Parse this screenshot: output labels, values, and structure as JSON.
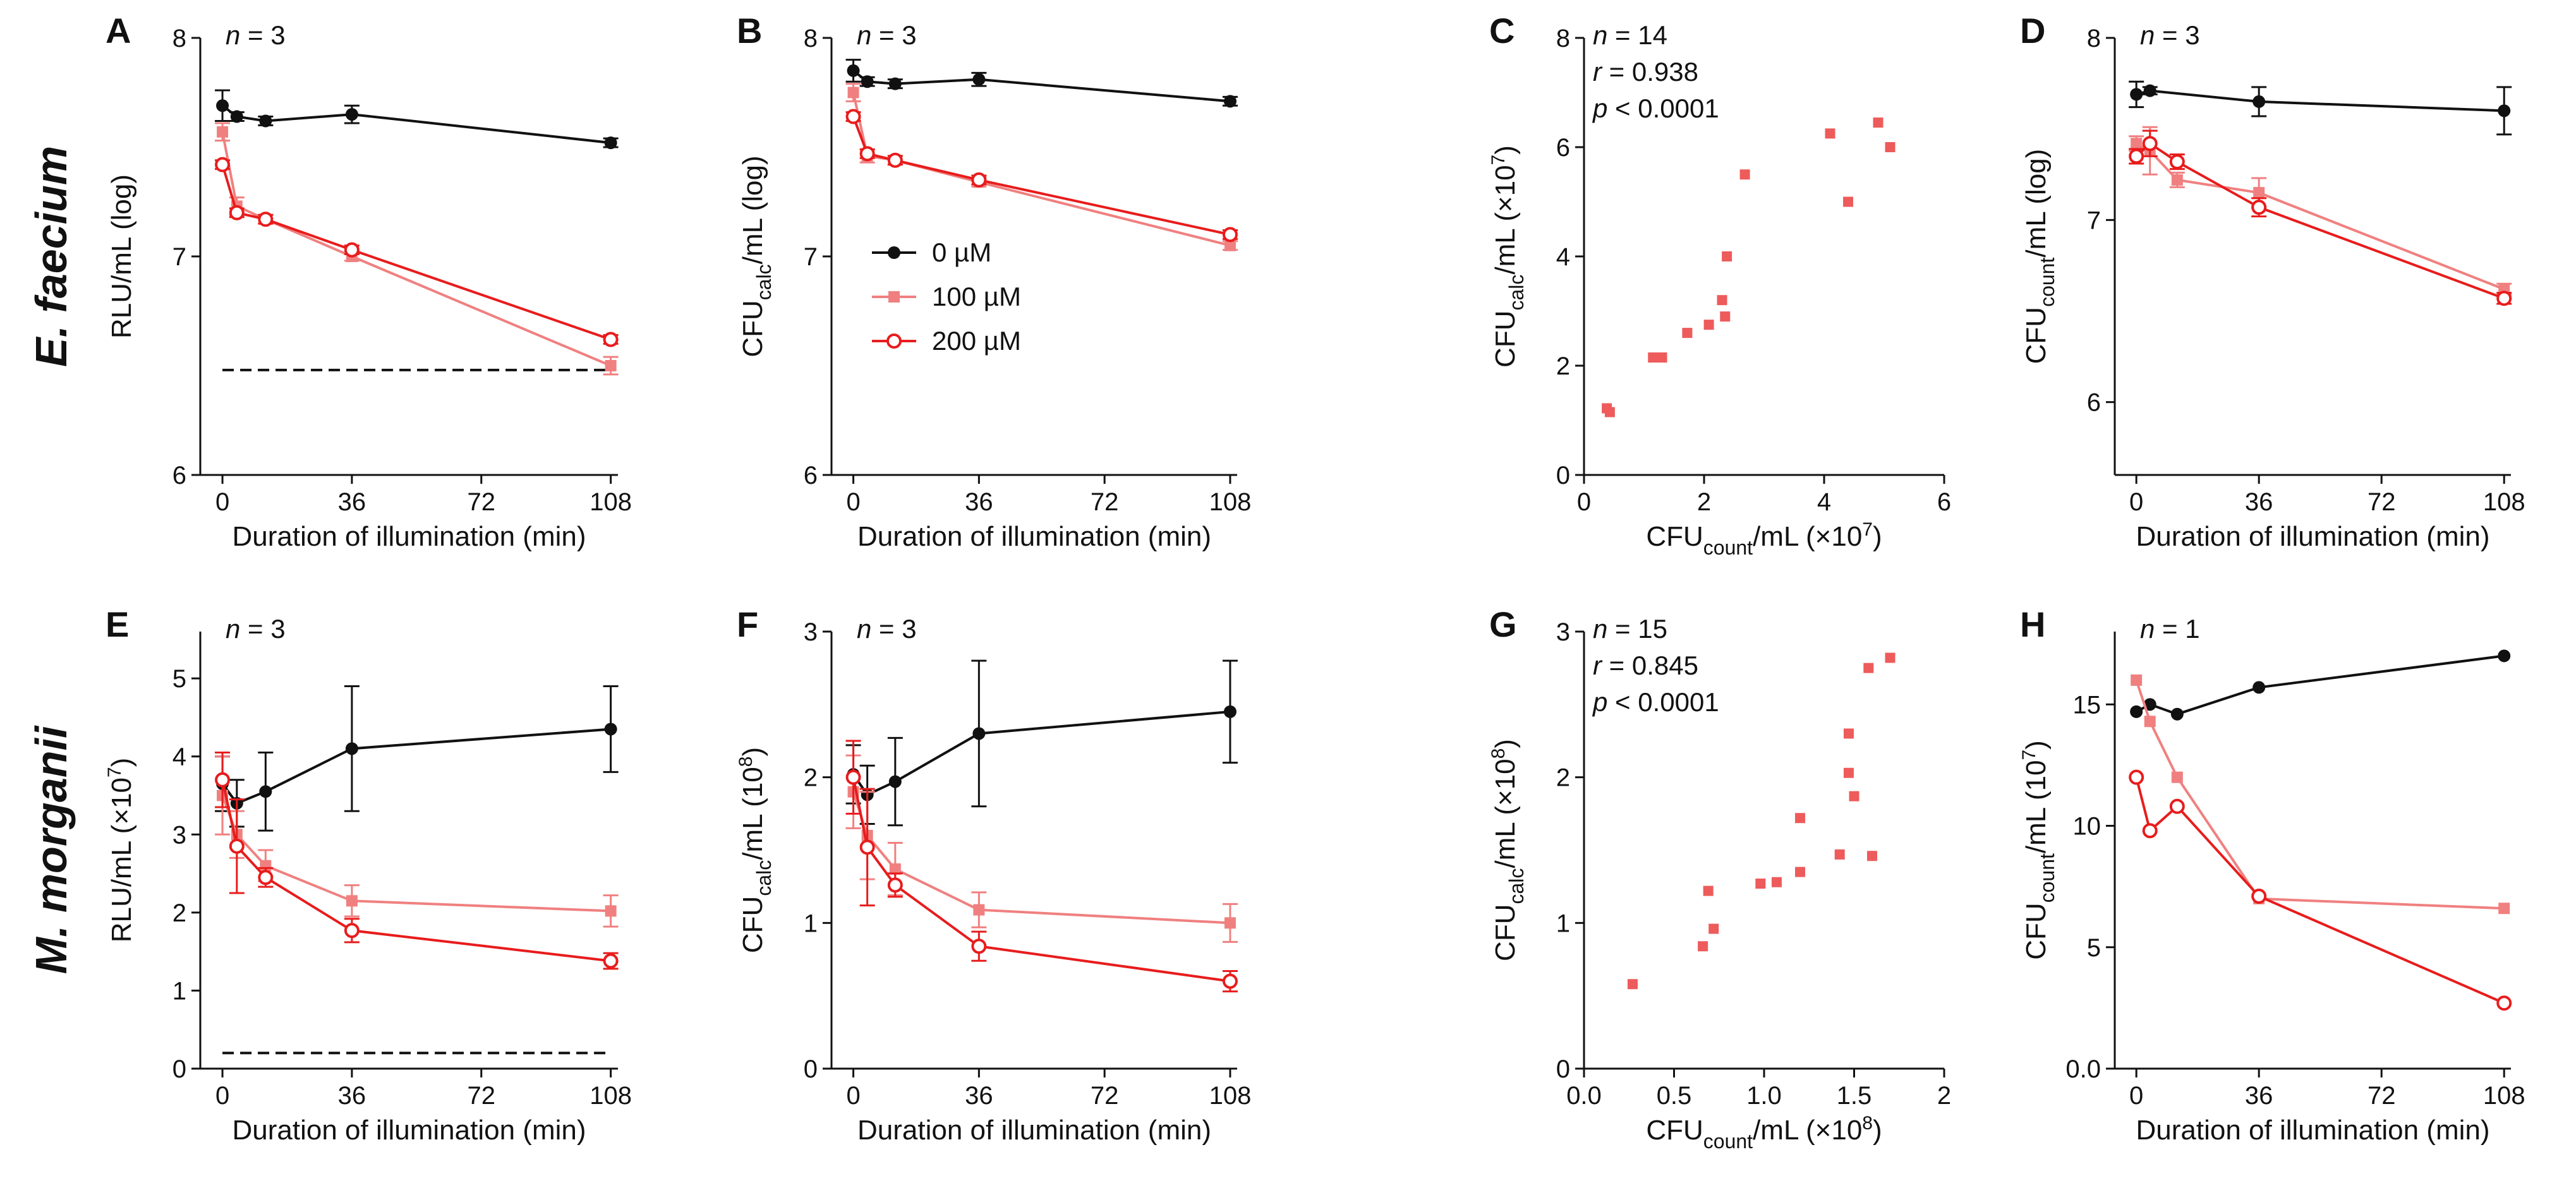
{
  "row_labels": [
    "E. faecium",
    "M. morganii"
  ],
  "legend": [
    {
      "label": "0 µM",
      "color": "#111111",
      "marker": "filled-circle"
    },
    {
      "label": "100 µM",
      "color": "#f08080",
      "marker": "filled-square"
    },
    {
      "label": "200 µM",
      "color": "#e81c1c",
      "marker": "open-circle"
    }
  ],
  "chart_data": [
    {
      "panel": "A",
      "type": "line",
      "annotation": "n = 3",
      "xlabel": "Duration of illumination (min)",
      "ylabel": "RLU/mL (log)",
      "xticks": [
        "0",
        "36",
        "72",
        "108"
      ],
      "yticks": [
        "6",
        "7",
        "8"
      ],
      "xlim": [
        -3,
        110
      ],
      "ylim": [
        6,
        8
      ],
      "dashed_line": {
        "y": 6.48
      },
      "x": [
        0,
        4,
        12,
        36,
        108
      ],
      "series": [
        {
          "name": "0 µM",
          "values": [
            7.69,
            7.64,
            7.62,
            7.65,
            7.52
          ],
          "err": [
            0.07,
            0.02,
            0.02,
            0.04,
            0.02
          ]
        },
        {
          "name": "100 µM",
          "values": [
            7.57,
            7.23,
            7.17,
            7.0,
            6.5
          ],
          "err": [
            0.04,
            0.04,
            0.02,
            0.02,
            0.04
          ]
        },
        {
          "name": "200 µM",
          "values": [
            7.42,
            7.2,
            7.17,
            7.03,
            6.62
          ],
          "err": [
            0.02,
            0.02,
            0.02,
            0.02,
            0.02
          ]
        }
      ]
    },
    {
      "panel": "B",
      "type": "line",
      "annotation": "n = 3",
      "xlabel": "Duration of illumination (min)",
      "ylabel": "CFU",
      "ylabel_sub": "calc",
      "ylabel_tail": "/mL (log)",
      "xticks": [
        "0",
        "36",
        "72",
        "108"
      ],
      "yticks": [
        "6",
        "7",
        "8"
      ],
      "xlim": [
        -3,
        110
      ],
      "ylim": [
        6,
        8
      ],
      "x": [
        0,
        4,
        12,
        36,
        108
      ],
      "series": [
        {
          "name": "0 µM",
          "values": [
            7.85,
            7.8,
            7.79,
            7.81,
            7.71
          ],
          "err": [
            0.05,
            0.02,
            0.02,
            0.03,
            0.02
          ]
        },
        {
          "name": "100 µM",
          "values": [
            7.75,
            7.46,
            7.44,
            7.34,
            7.05
          ],
          "err": [
            0.04,
            0.03,
            0.02,
            0.02,
            0.02
          ]
        },
        {
          "name": "200 µM",
          "values": [
            7.64,
            7.47,
            7.44,
            7.35,
            7.1
          ],
          "err": [
            0.02,
            0.02,
            0.02,
            0.02,
            0.02
          ]
        }
      ]
    },
    {
      "panel": "C",
      "type": "scatter",
      "annotation_lines": [
        "n = 14",
        "r = 0.938",
        "p < 0.0001"
      ],
      "xlabel": "CFU",
      "xlabel_sub": "count",
      "xlabel_tail": "/mL (×10",
      "xlabel_exp": "7",
      "xlabel_close": ")",
      "ylabel": "CFU",
      "ylabel_sub": "calc",
      "ylabel_tail": "/mL (×10",
      "ylabel_exp": "7",
      "ylabel_close": ")",
      "xticks": [
        "0",
        "2",
        "4",
        "6"
      ],
      "yticks": [
        "0",
        "2",
        "4",
        "6",
        "8"
      ],
      "xlim": [
        0,
        6
      ],
      "ylim": [
        0,
        8
      ],
      "points": [
        [
          0.38,
          1.22
        ],
        [
          0.43,
          1.15
        ],
        [
          1.15,
          2.15
        ],
        [
          1.3,
          2.15
        ],
        [
          1.72,
          2.6
        ],
        [
          2.08,
          2.75
        ],
        [
          2.3,
          3.2
        ],
        [
          2.35,
          2.9
        ],
        [
          2.38,
          4.0
        ],
        [
          2.68,
          5.5
        ],
        [
          4.1,
          6.25
        ],
        [
          4.4,
          5.0
        ],
        [
          4.9,
          6.45
        ],
        [
          5.1,
          6.0
        ]
      ]
    },
    {
      "panel": "D",
      "type": "line",
      "annotation": "n = 3",
      "xlabel": "Duration of illumination (min)",
      "ylabel": "CFU",
      "ylabel_sub": "count",
      "ylabel_tail": "/mL (log)",
      "xticks": [
        "0",
        "36",
        "72",
        "108"
      ],
      "yticks": [
        "6",
        "7",
        "8"
      ],
      "xlim": [
        -3,
        110
      ],
      "ylim": [
        5.6,
        8
      ],
      "x": [
        0,
        4,
        12,
        36,
        108
      ],
      "series": [
        {
          "name": "0 µM",
          "values": [
            7.69,
            7.71,
            7.65,
            7.6
          ],
          "x": [
            0,
            4,
            36,
            108
          ],
          "err": [
            0.07,
            0.02,
            0.08,
            0.13
          ]
        },
        {
          "name": "100 µM",
          "values": [
            7.42,
            7.38,
            7.22,
            7.15,
            6.62
          ],
          "err": [
            0.04,
            0.13,
            0.04,
            0.08,
            0.03
          ]
        },
        {
          "name": "200 µM",
          "values": [
            7.35,
            7.42,
            7.32,
            7.07,
            6.57
          ],
          "err": [
            0.04,
            0.07,
            0.04,
            0.05,
            0.03
          ]
        }
      ]
    },
    {
      "panel": "E",
      "type": "line",
      "annotation": "n = 3",
      "xlabel": "Duration of illumination (min)",
      "ylabel": "RLU/mL (×10",
      "ylabel_exp": "7",
      "ylabel_close": ")",
      "xticks": [
        "0",
        "36",
        "72",
        "108"
      ],
      "yticks": [
        "0",
        "1",
        "2",
        "3",
        "4",
        "5"
      ],
      "xlim": [
        -3,
        110
      ],
      "ylim": [
        0,
        5.6
      ],
      "dashed_line": {
        "y": 0.2
      },
      "x": [
        0,
        4,
        12,
        36,
        108
      ],
      "series": [
        {
          "name": "0 µM",
          "values": [
            3.65,
            3.4,
            3.55,
            4.1,
            4.35
          ],
          "err": [
            0.35,
            0.3,
            0.5,
            0.8,
            0.55
          ]
        },
        {
          "name": "100 µM",
          "values": [
            3.5,
            3.0,
            2.6,
            2.15,
            2.02
          ],
          "err": [
            0.5,
            0.3,
            0.2,
            0.2,
            0.2
          ]
        },
        {
          "name": "200 µM",
          "values": [
            3.7,
            2.85,
            2.45,
            1.77,
            1.38
          ],
          "err": [
            0.35,
            0.6,
            0.12,
            0.15,
            0.1
          ]
        }
      ]
    },
    {
      "panel": "F",
      "type": "line",
      "annotation": "n = 3",
      "xlabel": "Duration of illumination (min)",
      "ylabel": "CFU",
      "ylabel_sub": "calc",
      "ylabel_tail": "/mL (10",
      "ylabel_exp": "8",
      "ylabel_close": ")",
      "xticks": [
        "0",
        "36",
        "72",
        "108"
      ],
      "yticks": [
        "0",
        "1",
        "2",
        "3"
      ],
      "xlim": [
        -3,
        110
      ],
      "ylim": [
        0,
        3
      ],
      "x": [
        0,
        4,
        12,
        36,
        108
      ],
      "series": [
        {
          "name": "0 µM",
          "values": [
            2.02,
            1.88,
            1.97,
            2.3,
            2.45
          ],
          "err": [
            0.2,
            0.2,
            0.3,
            0.5,
            0.35
          ]
        },
        {
          "name": "100 µM",
          "values": [
            1.9,
            1.6,
            1.37,
            1.09,
            1.0
          ],
          "err": [
            0.25,
            0.3,
            0.18,
            0.12,
            0.13
          ]
        },
        {
          "name": "200 µM",
          "values": [
            2.0,
            1.52,
            1.26,
            0.84,
            0.6
          ],
          "err": [
            0.25,
            0.4,
            0.08,
            0.1,
            0.07
          ]
        }
      ]
    },
    {
      "panel": "G",
      "type": "scatter",
      "annotation_lines": [
        "n = 15",
        "r = 0.845",
        "p < 0.0001"
      ],
      "xlabel": "CFU",
      "xlabel_sub": "count",
      "xlabel_tail": "/mL (×10",
      "xlabel_exp": "8",
      "xlabel_close": ")",
      "ylabel": "CFU",
      "ylabel_sub": "calc",
      "ylabel_tail": "/mL (×10",
      "ylabel_exp": "8",
      "ylabel_close": ")",
      "xticks": [
        "0.0",
        "0.5",
        "1.0",
        "1.5",
        "2"
      ],
      "yticks": [
        "0",
        "1",
        "2",
        "3"
      ],
      "xlim": [
        0,
        2
      ],
      "ylim": [
        0,
        3
      ],
      "points": [
        [
          0.27,
          0.58
        ],
        [
          0.66,
          0.84
        ],
        [
          0.69,
          1.22
        ],
        [
          0.72,
          0.96
        ],
        [
          0.98,
          1.27
        ],
        [
          1.07,
          1.28
        ],
        [
          1.2,
          1.35
        ],
        [
          1.2,
          1.72
        ],
        [
          1.42,
          1.47
        ],
        [
          1.47,
          2.03
        ],
        [
          1.47,
          2.3
        ],
        [
          1.5,
          1.87
        ],
        [
          1.58,
          2.75
        ],
        [
          1.6,
          1.46
        ],
        [
          1.7,
          2.82
        ]
      ]
    },
    {
      "panel": "H",
      "type": "line",
      "annotation": "n = 1",
      "xlabel": "Duration of illumination (min)",
      "ylabel": "CFU",
      "ylabel_sub": "count",
      "ylabel_tail": "/mL (10",
      "ylabel_exp": "7",
      "ylabel_close": ")",
      "xticks": [
        "0",
        "36",
        "72",
        "108"
      ],
      "yticks": [
        "0.0",
        "5",
        "10",
        "15"
      ],
      "xlim": [
        -3,
        110
      ],
      "ylim": [
        0,
        18
      ],
      "x": [
        0,
        4,
        12,
        36,
        108
      ],
      "series": [
        {
          "name": "0 µM",
          "values": [
            14.7,
            15.0,
            14.6,
            15.7,
            17.0
          ]
        },
        {
          "name": "100 µM",
          "values": [
            16.0,
            14.3,
            12.0,
            7.0,
            6.6
          ]
        },
        {
          "name": "200 µM",
          "values": [
            12.0,
            9.8,
            10.8,
            7.1,
            2.7
          ]
        }
      ]
    }
  ]
}
